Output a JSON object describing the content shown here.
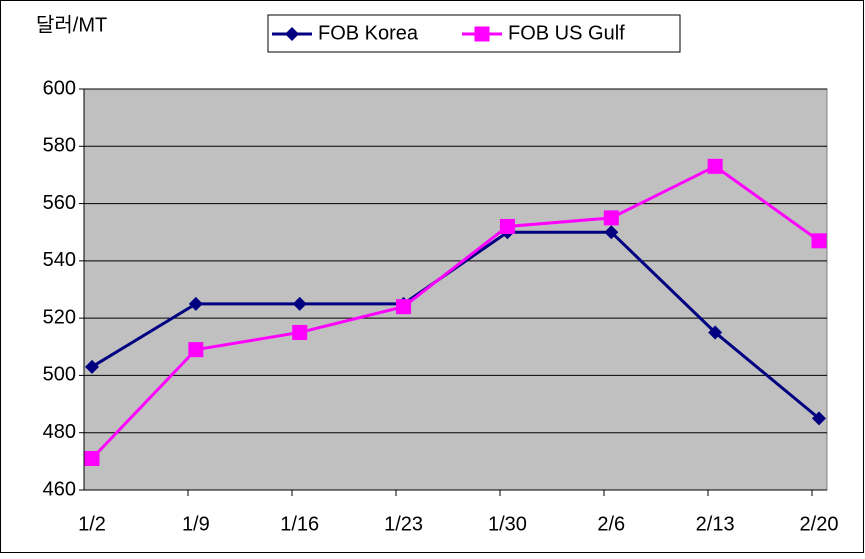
{
  "chart_data": {
    "type": "line",
    "y_label": "달러/MT",
    "categories": [
      "1/2",
      "1/9",
      "1/16",
      "1/23",
      "1/30",
      "2/6",
      "2/13",
      "2/20"
    ],
    "series": [
      {
        "name": "FOB Korea",
        "color": "#000080",
        "marker": "diamond",
        "values": [
          503,
          525,
          525,
          525,
          550,
          550,
          515,
          485
        ]
      },
      {
        "name": "FOB US Gulf",
        "color": "#ff00ff",
        "marker": "square",
        "values": [
          471,
          509,
          515,
          524,
          552,
          555,
          573,
          547
        ]
      }
    ],
    "ylim": [
      460,
      600
    ],
    "yticks": [
      460,
      480,
      500,
      520,
      540,
      560,
      580,
      600
    ],
    "grid": true,
    "legend": "top"
  }
}
